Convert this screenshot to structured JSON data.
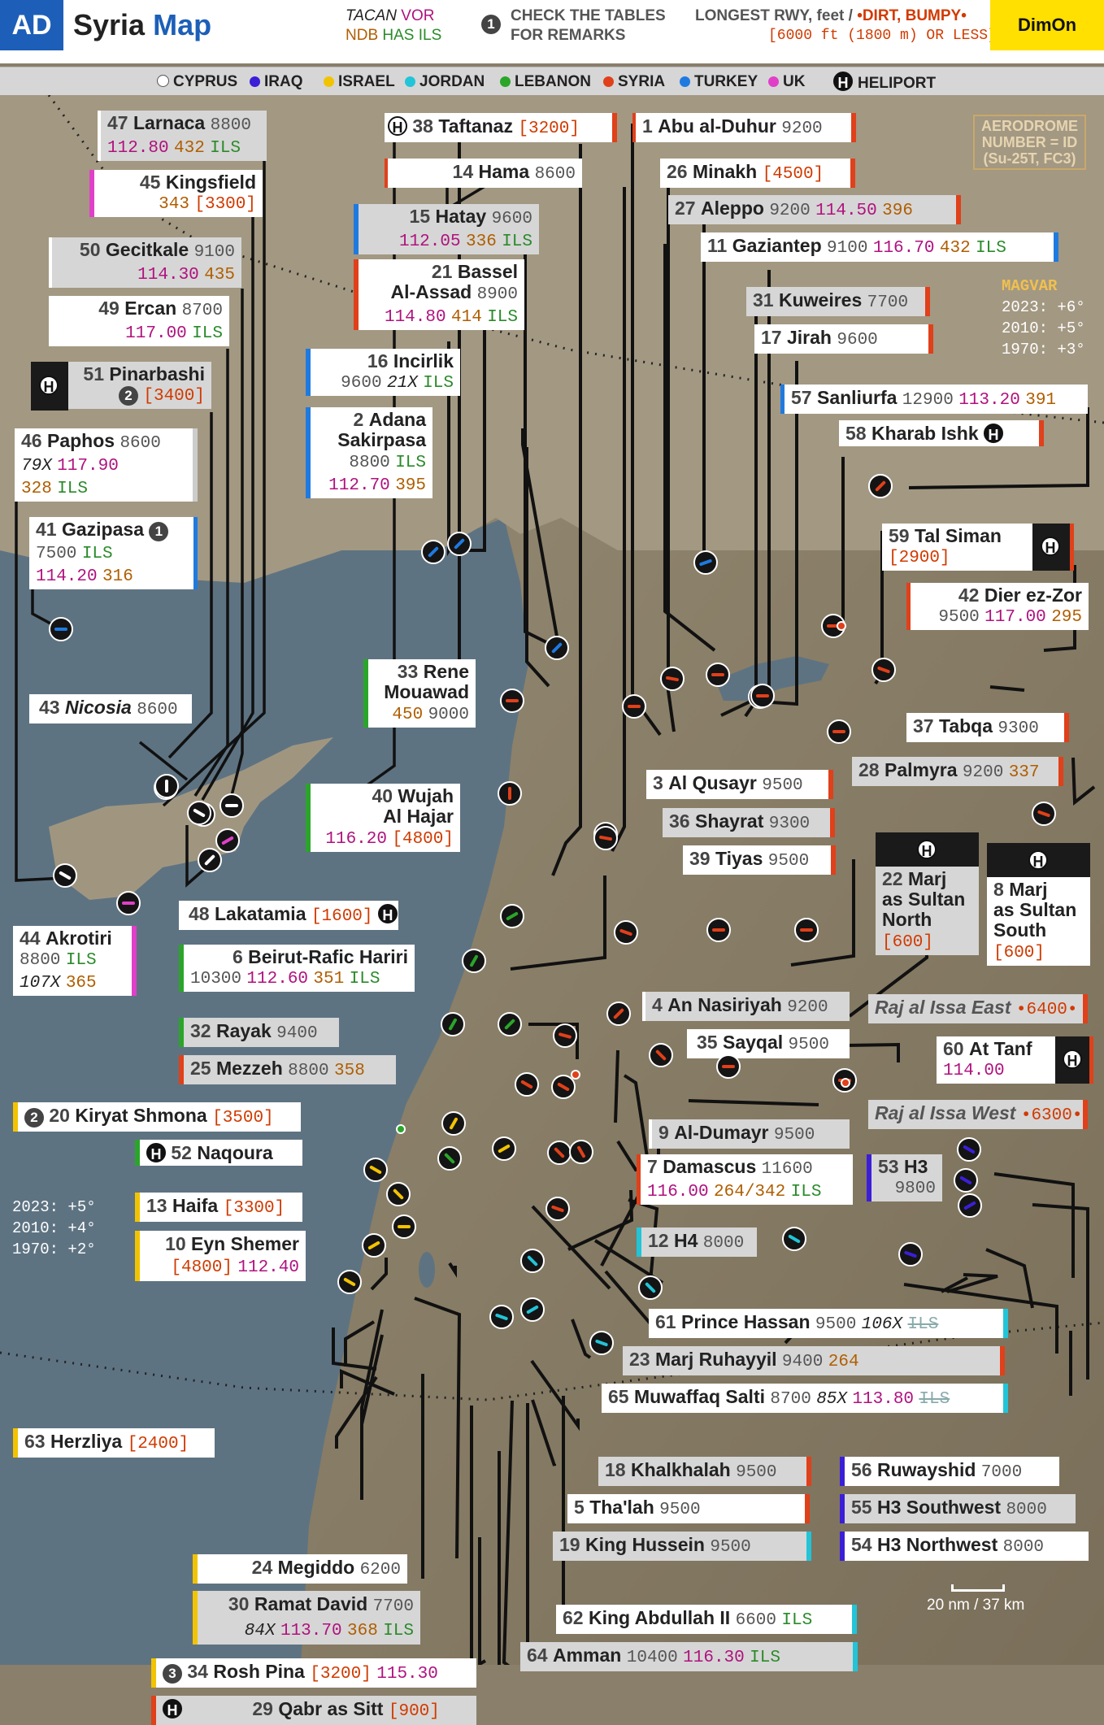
{
  "header": {
    "badge": "AD",
    "title_a": "Syria",
    "title_b": "Map",
    "tacan": "TACAN",
    "vor": "VOR",
    "ndb": "NDB",
    "has_ils": "HAS ILS",
    "remarks_num": "1",
    "remarks_1": "CHECK THE TABLES",
    "remarks_2": "FOR REMARKS",
    "rwy_1": "LONGEST RWY, feet /",
    "rwy_dirt": "•DIRT, BUMPY•",
    "rwy_2": "[6000 ft (1800 m) OR LESS]",
    "brand": "DimOn"
  },
  "legend": [
    {
      "label": "CYPRUS",
      "color": "#ffffff"
    },
    {
      "label": "IRAQ",
      "color": "#3b1fd6"
    },
    {
      "label": "ISRAEL",
      "color": "#f2c300"
    },
    {
      "label": "JORDAN",
      "color": "#22c4d8"
    },
    {
      "label": "LEBANON",
      "color": "#2aa52a"
    },
    {
      "label": "SYRIA",
      "color": "#e0401a"
    },
    {
      "label": "TURKEY",
      "color": "#1f7ae0"
    },
    {
      "label": "UK",
      "color": "#e040c8"
    },
    {
      "label": "HELIPORT",
      "color": "#111111"
    }
  ],
  "notes": {
    "aerodrome_1": "AERODROME",
    "aerodrome_2": "NUMBER = ID",
    "aerodrome_3": "(Su-25T, FC3)",
    "magvar_title": "MAGVAR",
    "magvar_2023": "2023: +6°",
    "magvar_2010": "2010: +5°",
    "magvar_1970": "1970: +3°",
    "west_2023": "2023: +5°",
    "west_2010": "2010: +4°",
    "west_1970": "1970: +2°",
    "scale": "20 nm / 37 km",
    "heli_glyph": "H"
  },
  "airfields": [
    {
      "id": "47",
      "name": "Larnaca",
      "rwy": "8800",
      "l2": "112.80",
      "l2b": "432",
      "l2c": "ILS",
      "country": "CYPRUS"
    },
    {
      "id": "45",
      "name": "Kingsfield",
      "l2": "343",
      "l2b": "[3300]",
      "country": "UK"
    },
    {
      "id": "50",
      "name": "Gecitkale",
      "rwy": "9100",
      "l2": "114.30",
      "l2b": "435",
      "country": "CYPRUS"
    },
    {
      "id": "49",
      "name": "Ercan",
      "rwy": "8700",
      "l2": "117.00",
      "l2c": "ILS",
      "country": "CYPRUS"
    },
    {
      "id": "51",
      "name": "Pinarbashi",
      "rem": "2",
      "l2b": "[3400]",
      "country": "CYPRUS"
    },
    {
      "id": "46",
      "name": "Paphos",
      "rwy": "8600",
      "tac": "79X",
      "l2": "117.90",
      "l3": "328",
      "l3c": "ILS",
      "country": "CYPRUS"
    },
    {
      "id": "41",
      "name": "Gazipasa",
      "rem": "1",
      "rwy": "7500",
      "l2c": "ILS",
      "l3f": "114.20",
      "l3": "316",
      "country": "TURKEY"
    },
    {
      "id": "43",
      "name": "Nicosia",
      "rwy": "8600",
      "country": "CYPRUS"
    },
    {
      "id": "44",
      "name": "Akrotiri",
      "rwy": "8800",
      "l2c": "ILS",
      "tac": "107X",
      "l3": "365",
      "country": "UK"
    },
    {
      "id": "48",
      "name": "Lakatamia",
      "rwy": "[1600]",
      "country": "CYPRUS"
    },
    {
      "id": "38",
      "name": "Taftanaz",
      "rwy": "[3200]",
      "country": "SYRIA"
    },
    {
      "id": "14",
      "name": "Hama",
      "rwy": "8600",
      "country": "SYRIA"
    },
    {
      "id": "15",
      "name": "Hatay",
      "rwy": "9600",
      "l2": "112.05",
      "l2b": "336",
      "l2c": "ILS",
      "country": "TURKEY"
    },
    {
      "id": "21",
      "name": "Bassel",
      "name2": "Al-Assad",
      "rwy": "8900",
      "l2": "114.80",
      "l2b": "414",
      "l2c": "ILS",
      "country": "SYRIA"
    },
    {
      "id": "16",
      "name": "Incirlik",
      "rwy": "9600",
      "tac": "21X",
      "l2c": "ILS",
      "country": "TURKEY"
    },
    {
      "id": "2",
      "name": "Adana",
      "name2": "Sakirpasa",
      "rwy": "8800",
      "l2c": "ILS",
      "l2": "112.70",
      "l2b": "395",
      "country": "TURKEY"
    },
    {
      "id": "33",
      "name": "Rene",
      "name2": "Mouawad",
      "l2b": "450",
      "rwy": "9000",
      "country": "LEBANON"
    },
    {
      "id": "40",
      "name": "Wujah",
      "name2": "Al Hajar",
      "l2": "116.20",
      "rwy": "[4800]",
      "country": "LEBANON"
    },
    {
      "id": "6",
      "name": "Beirut-Rafic Hariri",
      "rwy": "10300",
      "l2": "112.60",
      "l2b": "351",
      "l2c": "ILS",
      "country": "LEBANON"
    },
    {
      "id": "32",
      "name": "Rayak",
      "rwy": "9400",
      "country": "LEBANON"
    },
    {
      "id": "25",
      "name": "Mezzeh",
      "rwy": "8800",
      "l2b": "358",
      "country": "SYRIA"
    },
    {
      "id": "1",
      "name": "Abu al-Duhur",
      "rwy": "9200",
      "country": "SYRIA"
    },
    {
      "id": "26",
      "name": "Minakh",
      "rwy": "[4500]",
      "country": "SYRIA"
    },
    {
      "id": "27",
      "name": "Aleppo",
      "rwy": "9200",
      "l2": "114.50",
      "l2b": "396",
      "country": "SYRIA"
    },
    {
      "id": "11",
      "name": "Gaziantep",
      "rwy": "9100",
      "l2": "116.70",
      "l2b": "432",
      "l2c": "ILS",
      "country": "TURKEY"
    },
    {
      "id": "31",
      "name": "Kuweires",
      "rwy": "7700",
      "country": "SYRIA"
    },
    {
      "id": "17",
      "name": "Jirah",
      "rwy": "9600",
      "country": "SYRIA"
    },
    {
      "id": "57",
      "name": "Sanliurfa",
      "rwy": "12900",
      "l2": "113.20",
      "l2b": "391",
      "country": "TURKEY"
    },
    {
      "id": "58",
      "name": "Kharab Ishk",
      "country": "SYRIA"
    },
    {
      "id": "59",
      "name": "Tal Siman",
      "rwy": "[2900]",
      "country": "SYRIA"
    },
    {
      "id": "42",
      "name": "Dier ez-Zor",
      "rwy": "9500",
      "l2": "117.00",
      "l2b": "295",
      "country": "SYRIA"
    },
    {
      "id": "37",
      "name": "Tabqa",
      "rwy": "9300",
      "country": "SYRIA"
    },
    {
      "id": "28",
      "name": "Palmyra",
      "rwy": "9200",
      "l2b": "337",
      "country": "SYRIA"
    },
    {
      "id": "3",
      "name": "Al Qusayr",
      "rwy": "9500",
      "country": "SYRIA"
    },
    {
      "id": "36",
      "name": "Shayrat",
      "rwy": "9300",
      "country": "SYRIA"
    },
    {
      "id": "39",
      "name": "Tiyas",
      "rwy": "9500",
      "country": "SYRIA"
    },
    {
      "id": "22",
      "name": "Marj",
      "name2": "as Sultan",
      "name3": "North",
      "rwy": "[600]",
      "country": "SYRIA"
    },
    {
      "id": "8",
      "name": "Marj",
      "name2": "as Sultan",
      "name3": "South",
      "rwy": "[600]",
      "country": "SYRIA"
    },
    {
      "id": "4",
      "name": "An Nasiriyah",
      "rwy": "9200",
      "country": "SYRIA"
    },
    {
      "id": "35",
      "name": "Sayqal",
      "rwy": "9500",
      "country": "SYRIA"
    },
    {
      "id": "60",
      "name": "At Tanf",
      "l2": "114.00",
      "country": "SYRIA"
    },
    {
      "id": "9",
      "name": "Al-Dumayr",
      "rwy": "9500",
      "country": "SYRIA"
    },
    {
      "id": "7",
      "name": "Damascus",
      "rwy": "11600",
      "l2": "116.00",
      "l2b": "264/342",
      "l2c": "ILS",
      "country": "SYRIA"
    },
    {
      "id": "53",
      "name": "H3",
      "rwy": "9800",
      "country": "IRAQ"
    },
    {
      "id": "12",
      "name": "H4",
      "rwy": "8000",
      "country": "JORDAN"
    },
    {
      "id": "61",
      "name": "Prince Hassan",
      "rwy": "9500",
      "tac": "106X",
      "l2c": "ILS",
      "country": "JORDAN"
    },
    {
      "id": "23",
      "name": "Marj Ruhayyil",
      "rwy": "9400",
      "l2b": "264",
      "country": "SYRIA"
    },
    {
      "id": "65",
      "name": "Muwaffaq Salti",
      "rwy": "8700",
      "tac": "85X",
      "l2": "113.80",
      "l2c": "ILS",
      "country": "JORDAN"
    },
    {
      "id": "18",
      "name": "Khalkhalah",
      "rwy": "9500",
      "country": "SYRIA"
    },
    {
      "id": "5",
      "name": "Tha'lah",
      "rwy": "9500",
      "country": "SYRIA"
    },
    {
      "id": "19",
      "name": "King Hussein",
      "rwy": "9500",
      "country": "JORDAN"
    },
    {
      "id": "62",
      "name": "King Abdullah II",
      "rwy": "6600",
      "l2c": "ILS",
      "country": "JORDAN"
    },
    {
      "id": "64",
      "name": "Amman",
      "rwy": "10400",
      "l2": "116.30",
      "l2c": "ILS",
      "country": "JORDAN"
    },
    {
      "id": "56",
      "name": "Ruwayshid",
      "rwy": "7000",
      "country": "IRAQ"
    },
    {
      "id": "55",
      "name": "H3 Southwest",
      "rwy": "8000",
      "country": "IRAQ"
    },
    {
      "id": "54",
      "name": "H3 Northwest",
      "rwy": "8000",
      "country": "IRAQ"
    },
    {
      "id": "20",
      "name": "Kiryat Shmona",
      "rem": "2",
      "rwy": "[3500]",
      "country": "ISRAEL"
    },
    {
      "id": "52",
      "name": "Naqoura",
      "country": "LEBANON"
    },
    {
      "id": "13",
      "name": "Haifa",
      "rwy": "[3300]",
      "country": "ISRAEL"
    },
    {
      "id": "10",
      "name": "Eyn Shemer",
      "rwy": "[4800]",
      "l2": "112.40",
      "country": "ISRAEL"
    },
    {
      "id": "63",
      "name": "Herzliya",
      "rwy": "[2400]",
      "country": "ISRAEL"
    },
    {
      "id": "24",
      "name": "Megiddo",
      "rwy": "6200",
      "country": "ISRAEL"
    },
    {
      "id": "30",
      "name": "Ramat David",
      "rwy": "7700",
      "tac": "84X",
      "l2": "113.70",
      "l2b": "368",
      "l2c": "ILS",
      "country": "ISRAEL"
    },
    {
      "id": "34",
      "name": "Rosh Pina",
      "rem": "3",
      "rwy": "[3200]",
      "l2": "115.30",
      "country": "ISRAEL"
    },
    {
      "id": "29",
      "name": "Qabr as Sitt",
      "rwy": "[900]",
      "country": "SYRIA"
    }
  ],
  "dirt_strips": [
    {
      "name": "Raj al Issa East",
      "rwy": "•6400•"
    },
    {
      "name": "Raj al Issa West",
      "rwy": "•6300•"
    }
  ]
}
